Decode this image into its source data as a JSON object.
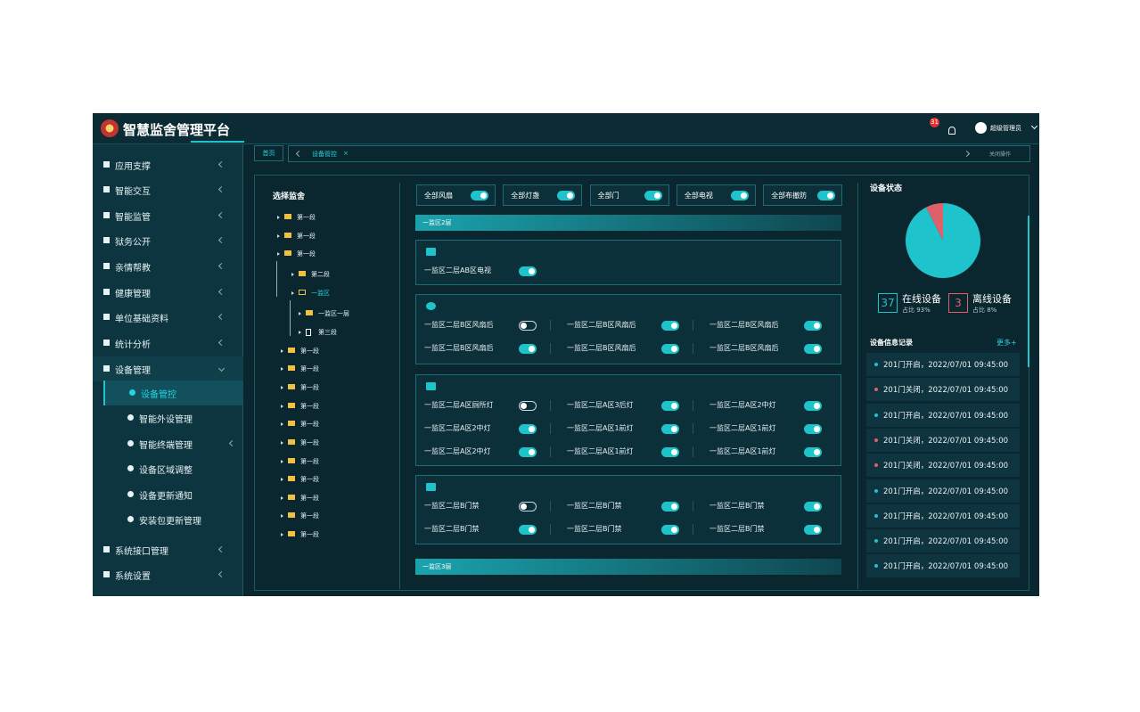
{
  "header": {
    "title": "智慧监舍管理平台",
    "badge": "31",
    "user": "超级管理员"
  },
  "sidebar": {
    "items": [
      {
        "label": "应用支撑",
        "level": 0,
        "arrow": true
      },
      {
        "label": "智能交互",
        "level": 0,
        "arrow": true
      },
      {
        "label": "智能监管",
        "level": 0,
        "arrow": true
      },
      {
        "label": "狱务公开",
        "level": 0,
        "arrow": true
      },
      {
        "label": "亲情帮教",
        "level": 0,
        "arrow": true
      },
      {
        "label": "健康管理",
        "level": 0,
        "arrow": true
      },
      {
        "label": "单位基础资料",
        "level": 0,
        "arrow": true
      },
      {
        "label": "统计分析",
        "level": 0,
        "arrow": true
      },
      {
        "label": "设备管理",
        "level": 0,
        "arrow": true,
        "expanded": true
      },
      {
        "label": "设备管控",
        "level": 1,
        "arrow": false,
        "active": true
      },
      {
        "label": "智能外设管理",
        "level": 1,
        "arrow": false
      },
      {
        "label": "智能终端管理",
        "level": 1,
        "arrow": true
      },
      {
        "label": "设备区域调整",
        "level": 1,
        "arrow": false
      },
      {
        "label": "设备更新通知",
        "level": 1,
        "arrow": false
      },
      {
        "label": "安装包更新管理",
        "level": 1,
        "arrow": false
      },
      {
        "label": "系统接口管理",
        "level": 0,
        "arrow": true
      },
      {
        "label": "系统设置",
        "level": 0,
        "arrow": true
      }
    ]
  },
  "tabs": {
    "home": "首页",
    "current": "设备管控",
    "close": "×",
    "actions": "关闭操作"
  },
  "tree": {
    "title": "选择监舍",
    "nodes": [
      {
        "label": "第一段",
        "level": 0
      },
      {
        "label": "第一段",
        "level": 0
      },
      {
        "label": "第一段",
        "level": 0,
        "expanded": true
      },
      {
        "label": "第二段",
        "level": 1
      },
      {
        "label": "一监区",
        "level": 1,
        "active": true
      },
      {
        "label": "一监区一层",
        "level": 2
      },
      {
        "label": "第三段",
        "level": 2,
        "file": true
      },
      {
        "label": "第一段",
        "level": 0
      },
      {
        "label": "第一段",
        "level": 0
      },
      {
        "label": "第一段",
        "level": 0
      },
      {
        "label": "第一段",
        "level": 0
      },
      {
        "label": "第一段",
        "level": 0
      },
      {
        "label": "第一段",
        "level": 0
      },
      {
        "label": "第一段",
        "level": 0
      },
      {
        "label": "第一段",
        "level": 0
      },
      {
        "label": "第一段",
        "level": 0
      },
      {
        "label": "第一段",
        "level": 0
      },
      {
        "label": "第一段",
        "level": 0
      }
    ]
  },
  "master_toggles": [
    {
      "label": "全部风扇",
      "on": true
    },
    {
      "label": "全部灯盏",
      "on": true
    },
    {
      "label": "全部门",
      "on": true
    },
    {
      "label": "全部电视",
      "on": true
    },
    {
      "label": "全部布撤防",
      "on": true
    }
  ],
  "sections": [
    {
      "title": "一监区2层",
      "groups": [
        {
          "kind": "tv",
          "items": [
            {
              "label": "一监区二层AB区电视",
              "on": true
            }
          ]
        },
        {
          "kind": "fan",
          "items": [
            {
              "label": "一监区二层B区风扇后",
              "on": false
            },
            {
              "label": "一监区二层B区风扇后",
              "on": true
            },
            {
              "label": "一监区二层B区风扇后",
              "on": true
            },
            {
              "label": "一监区二层B区风扇后",
              "on": true
            },
            {
              "label": "一监区二层B区风扇后",
              "on": true
            },
            {
              "label": "一监区二层B区风扇后",
              "on": true
            }
          ]
        },
        {
          "kind": "light",
          "items": [
            {
              "label": "一监区二层A区厕所灯",
              "on": false
            },
            {
              "label": "一监区二层A区3后灯",
              "on": true
            },
            {
              "label": "一监区二层A区2中灯",
              "on": true
            },
            {
              "label": "一监区二层A区2中灯",
              "on": true
            },
            {
              "label": "一监区二层A区1前灯",
              "on": true
            },
            {
              "label": "一监区二层A区1前灯",
              "on": true
            },
            {
              "label": "一监区二层A区2中灯",
              "on": true
            },
            {
              "label": "一监区二层A区1前灯",
              "on": true
            },
            {
              "label": "一监区二层A区1前灯",
              "on": true
            }
          ]
        },
        {
          "kind": "door",
          "items": [
            {
              "label": "一监区二层B门禁",
              "on": false
            },
            {
              "label": "一监区二层B门禁",
              "on": true
            },
            {
              "label": "一监区二层B门禁",
              "on": true
            },
            {
              "label": "一监区二层B门禁",
              "on": true
            },
            {
              "label": "一监区二层B门禁",
              "on": true
            },
            {
              "label": "一监区二层B门禁",
              "on": true
            }
          ]
        }
      ]
    },
    {
      "title": "一监区3层",
      "groups": []
    }
  ],
  "status": {
    "title": "设备状态",
    "online": {
      "count": 37,
      "label": "在线设备",
      "ratio": "占比 93%",
      "color": "#1fc3cc"
    },
    "offline": {
      "count": 3,
      "label": "离线设备",
      "ratio": "占比 8%",
      "color": "#e0606a"
    }
  },
  "records": {
    "title": "设备信息记录",
    "more": "更多+",
    "items": [
      {
        "text": "201门开启，2022/07/01 09:45:00",
        "color": "#1fc3cc"
      },
      {
        "text": "201门关闭，2022/07/01 09:45:00",
        "color": "#e0606a"
      },
      {
        "text": "201门开启，2022/07/01 09:45:00",
        "color": "#1fc3cc"
      },
      {
        "text": "201门关闭，2022/07/01 09:45:00",
        "color": "#e0606a"
      },
      {
        "text": "201门关闭，2022/07/01 09:45:00",
        "color": "#e0606a"
      },
      {
        "text": "201门开启，2022/07/01 09:45:00",
        "color": "#1fc3cc"
      },
      {
        "text": "201门开启，2022/07/01 09:45:00",
        "color": "#1fc3cc"
      },
      {
        "text": "201门开启，2022/07/01 09:45:00",
        "color": "#1fc3cc"
      },
      {
        "text": "201门开启，2022/07/01 09:45:00",
        "color": "#1fc3cc"
      }
    ]
  }
}
